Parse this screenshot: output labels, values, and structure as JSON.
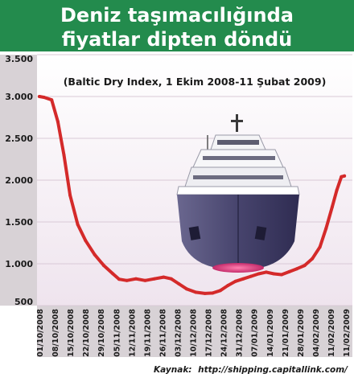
{
  "chart_data": {
    "type": "line",
    "title_lines": [
      "Deniz taşımacılığında",
      "fiyatlar dipten döndü"
    ],
    "subtitle": "(Baltic Dry Index, 1 Ekim 2008-11 Şubat 2009)",
    "source_label": "Kaynak:",
    "source_url": "http://shipping.capitallink.com/",
    "ylim": [
      500,
      3500
    ],
    "yticks": [
      {
        "value": 500,
        "label": "500"
      },
      {
        "value": 1000,
        "label": "1.000"
      },
      {
        "value": 1500,
        "label": "1.500"
      },
      {
        "value": 2000,
        "label": "2.000"
      },
      {
        "value": 2500,
        "label": "2.500"
      },
      {
        "value": 3000,
        "label": "3.000"
      },
      {
        "value": 3500,
        "label": "3.500"
      }
    ],
    "x_tick_labels": [
      "01/10/2008",
      "08/10/2008",
      "15/10/2008",
      "22/10/2008",
      "29/10/2008",
      "05/11/2008",
      "12/11/2008",
      "19/11/2008",
      "26/11/2008",
      "03/12/2008",
      "10/12/2008",
      "17/12/2008",
      "24/12/2008",
      "31/12/2008",
      "07/01/2009",
      "14/01/2009",
      "21/01/2009",
      "28/01/2009",
      "04/02/2009",
      "11/02/2009",
      "11/02/2009"
    ],
    "series": [
      {
        "values": [
          [
            0,
            3000
          ],
          [
            0.3,
            2990
          ],
          [
            0.8,
            2960
          ],
          [
            1.2,
            2700
          ],
          [
            1.6,
            2300
          ],
          [
            2.0,
            1820
          ],
          [
            2.5,
            1470
          ],
          [
            3.0,
            1280
          ],
          [
            3.6,
            1110
          ],
          [
            4.2,
            980
          ],
          [
            4.8,
            880
          ],
          [
            5.2,
            815
          ],
          [
            5.7,
            800
          ],
          [
            6.3,
            820
          ],
          [
            6.9,
            800
          ],
          [
            7.5,
            820
          ],
          [
            8.1,
            840
          ],
          [
            8.6,
            820
          ],
          [
            9.1,
            760
          ],
          [
            9.6,
            700
          ],
          [
            10.2,
            660
          ],
          [
            10.8,
            645
          ],
          [
            11.3,
            650
          ],
          [
            11.8,
            680
          ],
          [
            12.3,
            740
          ],
          [
            12.8,
            790
          ],
          [
            13.3,
            820
          ],
          [
            13.8,
            850
          ],
          [
            14.3,
            880
          ],
          [
            14.8,
            900
          ],
          [
            15.3,
            880
          ],
          [
            15.8,
            870
          ],
          [
            16.3,
            905
          ],
          [
            16.8,
            940
          ],
          [
            17.3,
            980
          ],
          [
            17.8,
            1060
          ],
          [
            18.3,
            1200
          ],
          [
            18.7,
            1420
          ],
          [
            19.1,
            1680
          ],
          [
            19.4,
            1880
          ],
          [
            19.7,
            2040
          ],
          [
            19.9,
            2050
          ]
        ],
        "color": "#d42a2a"
      }
    ],
    "colors": {
      "title_band": "#238b4d",
      "plot_background": "#f3ecf2",
      "label_panel": "#d8d2d6",
      "line": "#d42a2a",
      "hull": "#4f4c77",
      "deck": "#ffffff",
      "bow_glow": "#d93d7c"
    },
    "illustration": "cargo-ship"
  }
}
